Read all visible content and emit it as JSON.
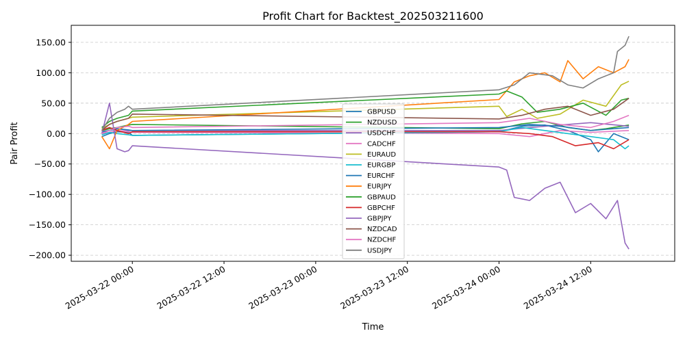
{
  "chart_data": {
    "type": "line",
    "title": "Profit Chart for Backtest_202503211600",
    "xlabel": "Time",
    "ylabel": "Pair Profit",
    "xlim": [
      "2025-03-21 16:00",
      "2025-03-24 23:00"
    ],
    "ylim": [
      -210,
      178
    ],
    "x_ticks": [
      "2025-03-22 00:00",
      "2025-03-22 12:00",
      "2025-03-23 00:00",
      "2025-03-23 12:00",
      "2025-03-24 00:00",
      "2025-03-24 12:00"
    ],
    "y_ticks": [
      150,
      100,
      50,
      0,
      -50,
      -100,
      -150,
      -200
    ],
    "y_tick_labels": [
      "150.00",
      "100.00",
      "50.00",
      "0.00",
      "−50.00",
      "−100.00",
      "−150.00",
      "−200.00"
    ],
    "grid": "y-dashed",
    "legend_position": "center",
    "series": [
      {
        "name": "GBPUSD",
        "color": "#1f77b4",
        "points": [
          [
            "2025-03-21 20:00",
            -5
          ],
          [
            "2025-03-21 21:00",
            0
          ],
          [
            "2025-03-21 22:00",
            3
          ],
          [
            "2025-03-21 23:30",
            2
          ],
          [
            "2025-03-22 00:00",
            -3
          ],
          [
            "2025-03-24 00:00",
            3
          ],
          [
            "2025-03-24 03:00",
            12
          ],
          [
            "2025-03-24 06:00",
            14
          ],
          [
            "2025-03-24 09:00",
            5
          ],
          [
            "2025-03-24 12:00",
            -10
          ],
          [
            "2025-03-24 13:00",
            -30
          ],
          [
            "2025-03-24 15:00",
            0
          ],
          [
            "2025-03-24 17:00",
            -10
          ]
        ]
      },
      {
        "name": "NZDUSD",
        "color": "#2ca02c",
        "points": [
          [
            "2025-03-21 20:00",
            5
          ],
          [
            "2025-03-21 21:00",
            8
          ],
          [
            "2025-03-21 22:00",
            10
          ],
          [
            "2025-03-21 23:30",
            14
          ],
          [
            "2025-03-22 00:00",
            15
          ],
          [
            "2025-03-24 00:00",
            8
          ],
          [
            "2025-03-24 03:00",
            16
          ],
          [
            "2025-03-24 06:00",
            20
          ],
          [
            "2025-03-24 09:00",
            10
          ],
          [
            "2025-03-24 12:00",
            5
          ],
          [
            "2025-03-24 14:00",
            8
          ],
          [
            "2025-03-24 17:00",
            14
          ]
        ]
      },
      {
        "name": "USDCHF",
        "color": "#9467bd",
        "points": [
          [
            "2025-03-21 20:00",
            2
          ],
          [
            "2025-03-21 21:00",
            5
          ],
          [
            "2025-03-21 22:00",
            8
          ],
          [
            "2025-03-21 23:30",
            5
          ],
          [
            "2025-03-22 00:00",
            5
          ],
          [
            "2025-03-24 00:00",
            5
          ],
          [
            "2025-03-24 06:00",
            12
          ],
          [
            "2025-03-24 12:00",
            18
          ],
          [
            "2025-03-24 17:00",
            12
          ]
        ]
      },
      {
        "name": "CADCHF",
        "color": "#e377c2",
        "points": [
          [
            "2025-03-21 20:00",
            0
          ],
          [
            "2025-03-21 21:00",
            2
          ],
          [
            "2025-03-21 22:00",
            5
          ],
          [
            "2025-03-21 23:30",
            3
          ],
          [
            "2025-03-22 00:00",
            2
          ],
          [
            "2025-03-24 00:00",
            0
          ],
          [
            "2025-03-24 04:00",
            -5
          ],
          [
            "2025-03-24 08:00",
            5
          ],
          [
            "2025-03-24 12:00",
            2
          ],
          [
            "2025-03-24 17:00",
            5
          ]
        ]
      },
      {
        "name": "EURAUD",
        "color": "#bcbd22",
        "points": [
          [
            "2025-03-21 20:00",
            8
          ],
          [
            "2025-03-21 21:00",
            15
          ],
          [
            "2025-03-21 22:00",
            20
          ],
          [
            "2025-03-21 23:30",
            25
          ],
          [
            "2025-03-22 00:00",
            27
          ],
          [
            "2025-03-24 00:00",
            45
          ],
          [
            "2025-03-24 01:00",
            28
          ],
          [
            "2025-03-24 03:00",
            40
          ],
          [
            "2025-03-24 05:00",
            25
          ],
          [
            "2025-03-24 08:00",
            32
          ],
          [
            "2025-03-24 11:00",
            55
          ],
          [
            "2025-03-24 14:00",
            45
          ],
          [
            "2025-03-24 16:00",
            80
          ],
          [
            "2025-03-24 17:00",
            86
          ]
        ]
      },
      {
        "name": "EURGBP",
        "color": "#17becf",
        "points": [
          [
            "2025-03-21 20:00",
            -2
          ],
          [
            "2025-03-21 21:00",
            2
          ],
          [
            "2025-03-21 22:00",
            0
          ],
          [
            "2025-03-21 23:30",
            -2
          ],
          [
            "2025-03-22 00:00",
            -3
          ],
          [
            "2025-03-24 00:00",
            3
          ],
          [
            "2025-03-24 03:00",
            10
          ],
          [
            "2025-03-24 06:00",
            5
          ],
          [
            "2025-03-24 09:00",
            0
          ],
          [
            "2025-03-24 12:00",
            -5
          ],
          [
            "2025-03-24 15:00",
            -10
          ],
          [
            "2025-03-24 16:30",
            -25
          ],
          [
            "2025-03-24 17:00",
            -20
          ]
        ]
      },
      {
        "name": "EURCHF",
        "color": "#1f77b4",
        "points": [
          [
            "2025-03-21 20:00",
            3
          ],
          [
            "2025-03-21 21:00",
            5
          ],
          [
            "2025-03-21 22:00",
            8
          ],
          [
            "2025-03-21 23:30",
            6
          ],
          [
            "2025-03-22 00:00",
            5
          ],
          [
            "2025-03-24 00:00",
            10
          ],
          [
            "2025-03-24 04:00",
            15
          ],
          [
            "2025-03-24 08:00",
            12
          ],
          [
            "2025-03-24 12:00",
            5
          ],
          [
            "2025-03-24 17:00",
            10
          ]
        ]
      },
      {
        "name": "EURJPY",
        "color": "#ff7f0e",
        "points": [
          [
            "2025-03-21 20:00",
            -5
          ],
          [
            "2025-03-21 21:00",
            -25
          ],
          [
            "2025-03-21 22:00",
            5
          ],
          [
            "2025-03-21 23:30",
            15
          ],
          [
            "2025-03-22 00:00",
            20
          ],
          [
            "2025-03-24 00:00",
            56
          ],
          [
            "2025-03-24 02:00",
            85
          ],
          [
            "2025-03-24 04:00",
            95
          ],
          [
            "2025-03-24 06:00",
            100
          ],
          [
            "2025-03-24 08:00",
            85
          ],
          [
            "2025-03-24 09:00",
            120
          ],
          [
            "2025-03-24 11:00",
            90
          ],
          [
            "2025-03-24 13:00",
            110
          ],
          [
            "2025-03-24 15:00",
            100
          ],
          [
            "2025-03-24 16:30",
            110
          ],
          [
            "2025-03-24 17:00",
            122
          ]
        ]
      },
      {
        "name": "GBPAUD",
        "color": "#2ca02c",
        "points": [
          [
            "2025-03-21 20:00",
            10
          ],
          [
            "2025-03-21 21:00",
            20
          ],
          [
            "2025-03-21 22:00",
            25
          ],
          [
            "2025-03-21 23:30",
            30
          ],
          [
            "2025-03-22 00:00",
            37
          ],
          [
            "2025-03-24 00:00",
            65
          ],
          [
            "2025-03-24 01:00",
            70
          ],
          [
            "2025-03-24 03:00",
            60
          ],
          [
            "2025-03-24 05:00",
            35
          ],
          [
            "2025-03-24 08:00",
            40
          ],
          [
            "2025-03-24 11:00",
            50
          ],
          [
            "2025-03-24 14:00",
            30
          ],
          [
            "2025-03-24 16:00",
            55
          ],
          [
            "2025-03-24 17:00",
            58
          ]
        ]
      },
      {
        "name": "GBPCHF",
        "color": "#d62728",
        "points": [
          [
            "2025-03-21 20:00",
            5
          ],
          [
            "2025-03-21 21:00",
            10
          ],
          [
            "2025-03-21 22:00",
            5
          ],
          [
            "2025-03-21 23:30",
            0
          ],
          [
            "2025-03-22 00:00",
            3
          ],
          [
            "2025-03-24 00:00",
            3
          ],
          [
            "2025-03-24 04:00",
            0
          ],
          [
            "2025-03-24 07:00",
            -5
          ],
          [
            "2025-03-24 10:00",
            -20
          ],
          [
            "2025-03-24 13:00",
            -15
          ],
          [
            "2025-03-24 15:00",
            -25
          ],
          [
            "2025-03-24 17:00",
            -10
          ]
        ]
      },
      {
        "name": "GBPJPY",
        "color": "#9467bd",
        "points": [
          [
            "2025-03-21 20:00",
            0
          ],
          [
            "2025-03-21 21:00",
            50
          ],
          [
            "2025-03-21 22:00",
            -25
          ],
          [
            "2025-03-21 23:00",
            -30
          ],
          [
            "2025-03-21 23:30",
            -28
          ],
          [
            "2025-03-22 00:00",
            -20
          ],
          [
            "2025-03-24 00:00",
            -55
          ],
          [
            "2025-03-24 01:00",
            -60
          ],
          [
            "2025-03-24 02:00",
            -105
          ],
          [
            "2025-03-24 04:00",
            -110
          ],
          [
            "2025-03-24 06:00",
            -90
          ],
          [
            "2025-03-24 08:00",
            -80
          ],
          [
            "2025-03-24 10:00",
            -130
          ],
          [
            "2025-03-24 12:00",
            -115
          ],
          [
            "2025-03-24 14:00",
            -140
          ],
          [
            "2025-03-24 15:30",
            -110
          ],
          [
            "2025-03-24 16:30",
            -180
          ],
          [
            "2025-03-24 17:00",
            -190
          ]
        ]
      },
      {
        "name": "NZDCAD",
        "color": "#8c564b",
        "points": [
          [
            "2025-03-21 20:00",
            5
          ],
          [
            "2025-03-21 21:00",
            15
          ],
          [
            "2025-03-21 22:00",
            20
          ],
          [
            "2025-03-21 23:30",
            25
          ],
          [
            "2025-03-22 00:00",
            32
          ],
          [
            "2025-03-24 00:00",
            24
          ],
          [
            "2025-03-24 03:00",
            30
          ],
          [
            "2025-03-24 06:00",
            40
          ],
          [
            "2025-03-24 09:00",
            45
          ],
          [
            "2025-03-24 12:00",
            30
          ],
          [
            "2025-03-24 15:00",
            40
          ],
          [
            "2025-03-24 17:00",
            58
          ]
        ]
      },
      {
        "name": "NZDCHF",
        "color": "#e377c2",
        "points": [
          [
            "2025-03-21 20:00",
            0
          ],
          [
            "2025-03-21 21:00",
            5
          ],
          [
            "2025-03-21 22:00",
            10
          ],
          [
            "2025-03-21 23:30",
            12
          ],
          [
            "2025-03-22 00:00",
            10
          ],
          [
            "2025-03-24 00:00",
            18
          ],
          [
            "2025-03-24 04:00",
            25
          ],
          [
            "2025-03-24 08:00",
            15
          ],
          [
            "2025-03-24 12:00",
            10
          ],
          [
            "2025-03-24 15:00",
            20
          ],
          [
            "2025-03-24 17:00",
            30
          ]
        ]
      },
      {
        "name": "USDJPY",
        "color": "#7f7f7f",
        "points": [
          [
            "2025-03-21 20:00",
            5
          ],
          [
            "2025-03-21 21:00",
            25
          ],
          [
            "2025-03-21 22:00",
            35
          ],
          [
            "2025-03-21 23:00",
            40
          ],
          [
            "2025-03-21 23:30",
            45
          ],
          [
            "2025-03-22 00:00",
            40
          ],
          [
            "2025-03-24 00:00",
            72
          ],
          [
            "2025-03-24 02:00",
            80
          ],
          [
            "2025-03-24 04:00",
            100
          ],
          [
            "2025-03-24 07:00",
            95
          ],
          [
            "2025-03-24 09:00",
            80
          ],
          [
            "2025-03-24 11:00",
            75
          ],
          [
            "2025-03-24 13:00",
            90
          ],
          [
            "2025-03-24 15:00",
            100
          ],
          [
            "2025-03-24 15:30",
            135
          ],
          [
            "2025-03-24 16:30",
            145
          ],
          [
            "2025-03-24 17:00",
            160
          ]
        ]
      }
    ]
  }
}
